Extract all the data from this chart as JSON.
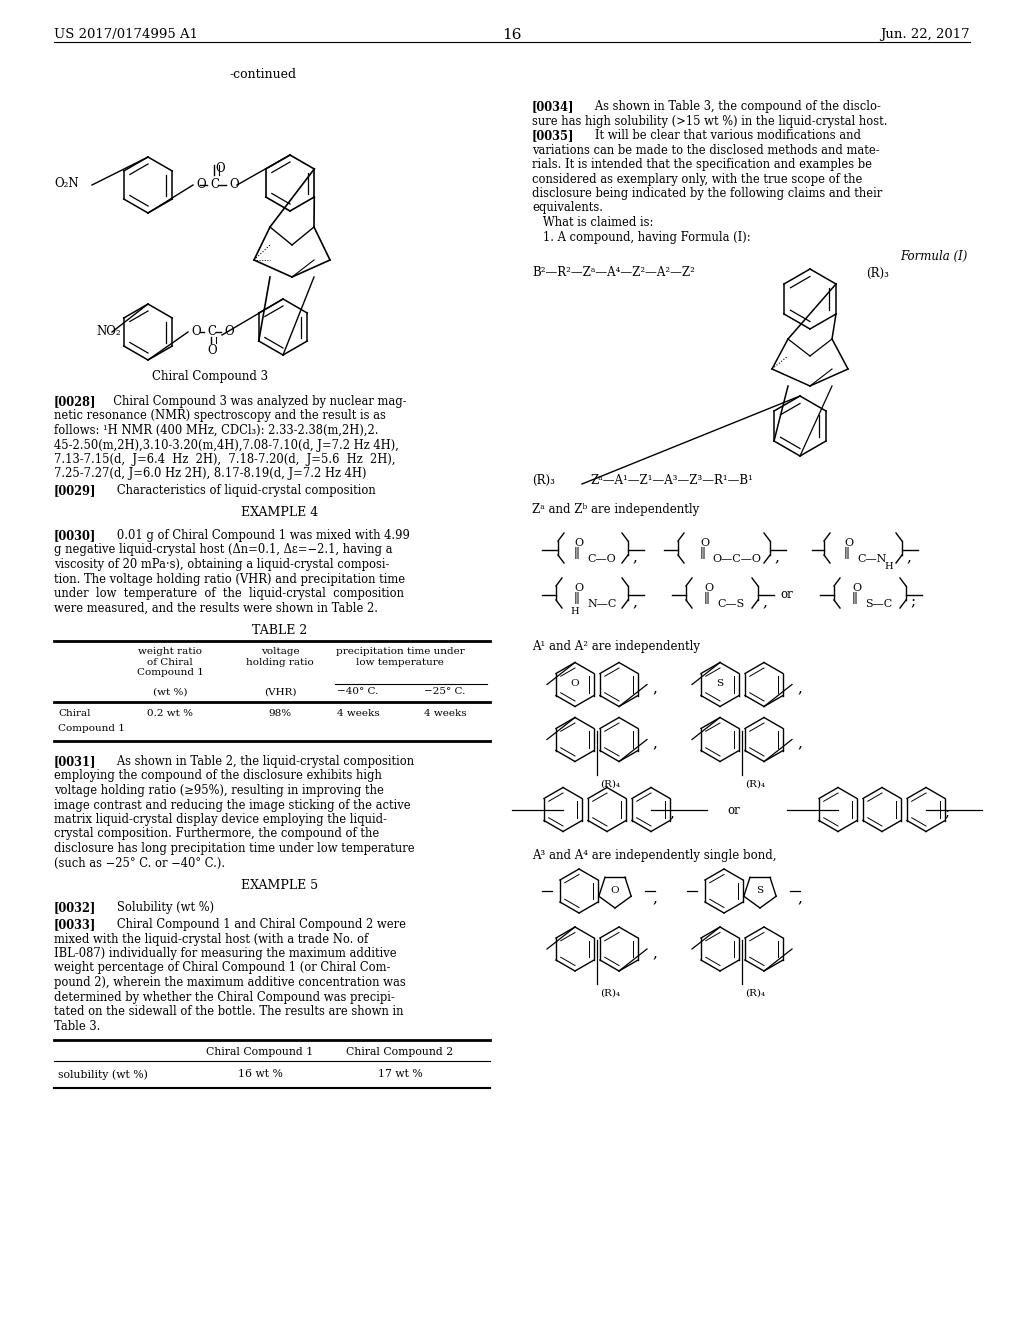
{
  "bg": "#ffffff",
  "header_left": "US 2017/0174995 A1",
  "header_center": "16",
  "header_right": "Jun. 22, 2017"
}
